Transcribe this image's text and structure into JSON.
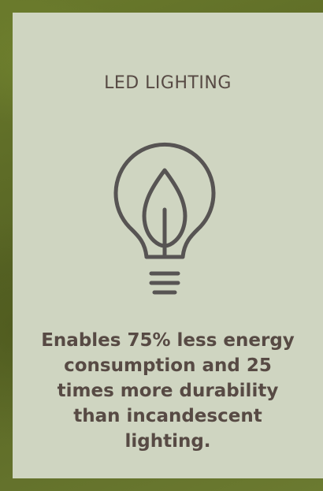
{
  "card": {
    "title": "LED LIGHTING",
    "icon": "lightbulb-leaf-icon",
    "description": "Enables 75% less energy consumption and 25 times more durability than incandescent lighting."
  },
  "colors": {
    "card_background": "#cfd5c1",
    "text": "#574a44",
    "icon_stroke": "#575453",
    "page_background": "#5f6a2a"
  }
}
